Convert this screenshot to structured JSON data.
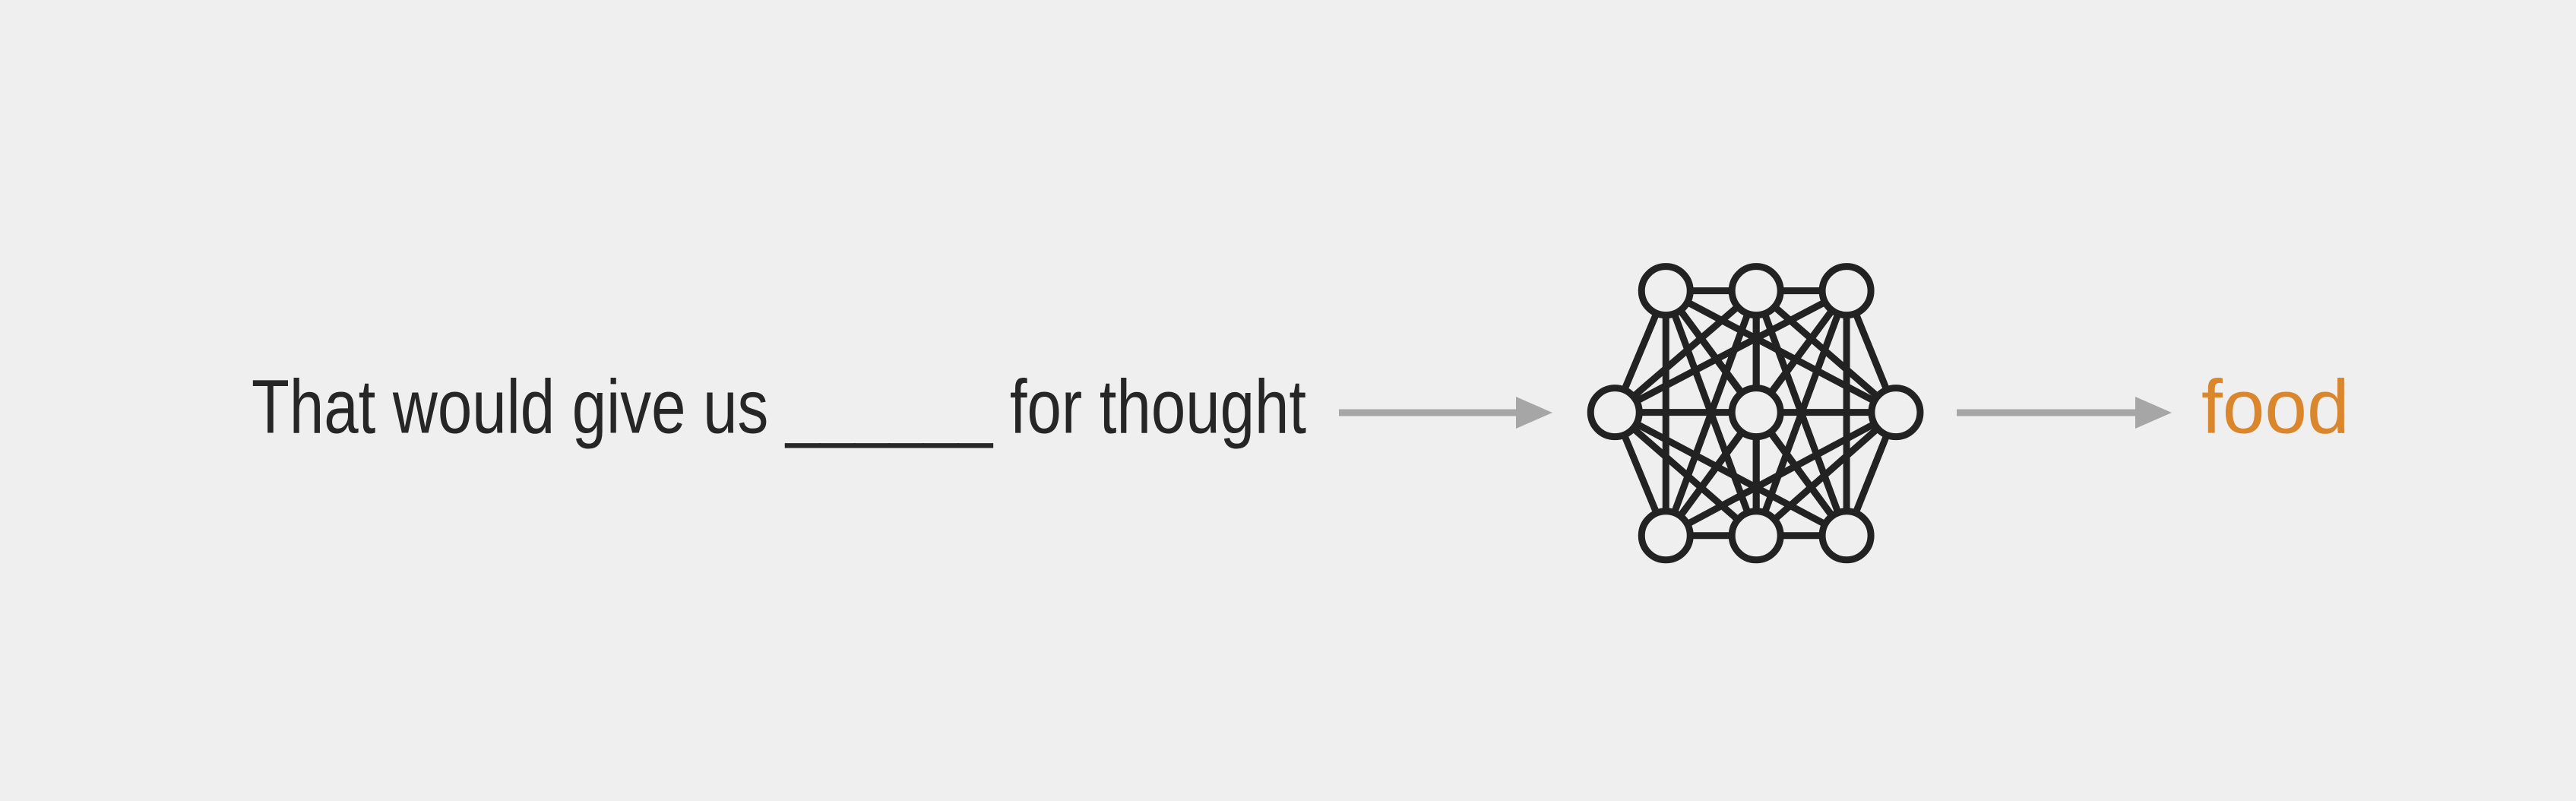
{
  "input_text": "That would give us ______ for thought",
  "output_text": "food"
}
